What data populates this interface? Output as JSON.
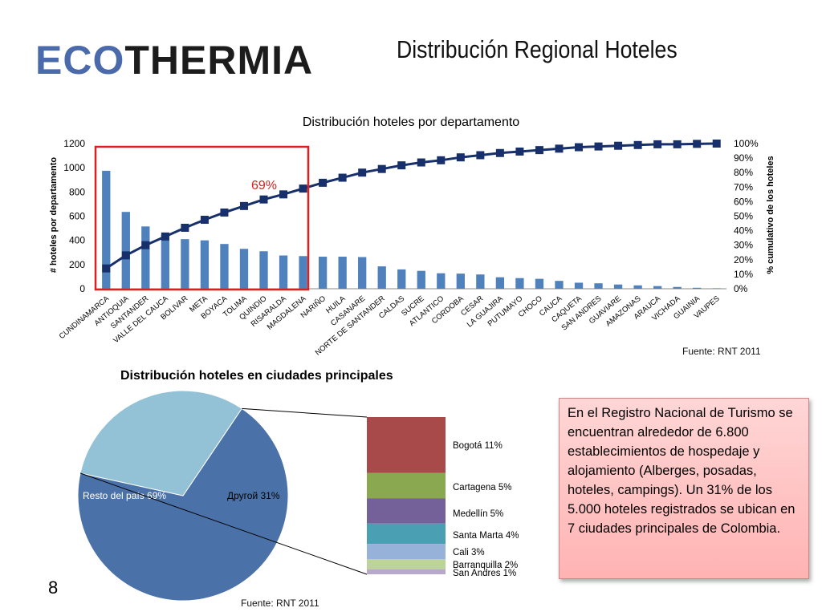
{
  "logo": {
    "part1": "ECO",
    "part2": "THERMIA"
  },
  "slide_title": "Distribución Regional Hoteles",
  "slide_number": "8",
  "note_text": "En el Registro Nacional de Turismo se encuentran alrededor de 6.800 establecimientos de hospedaje y alojamiento (Alberges, posadas, hoteles, campings). Un 31% de los 5.000 hoteles registrados se ubican en 7 ciudades principales de Colombia.",
  "colors": {
    "bar": "#4f81bd",
    "line": "#17306b",
    "highlight": "#e02020",
    "highlight_text": "#e02020"
  },
  "chart_data": [
    {
      "type": "bar",
      "title": "Distribución hoteles por departamento",
      "ylabel": "# hoteles por departamento",
      "y2label": "% cumulativo de los hoteles",
      "ylim": [
        0,
        1200
      ],
      "yticks": [
        "0",
        "200",
        "400",
        "600",
        "800",
        "1000",
        "1200"
      ],
      "y2lim": [
        0,
        100
      ],
      "y2ticks": [
        "0%",
        "10%",
        "20%",
        "30%",
        "40%",
        "50%",
        "60%",
        "70%",
        "80%",
        "90%",
        "100%"
      ],
      "categories": [
        "CUNDINAMARCA",
        "ANTIOQUIA",
        "SANTANDER",
        "VALLE DEL CAUCA",
        "BOLIVAR",
        "META",
        "BOYACA",
        "TOLIMA",
        "QUINDIO",
        "RISARALDA",
        "MAGDALENA",
        "NARIÑO",
        "HUILA",
        "CASANARE",
        "NORTE DE SANTANDER",
        "CALDAS",
        "SUCRE",
        "ATLANTICO",
        "CORDOBA",
        "CESAR",
        "LA GUAJIRA",
        "PUTUMAYO",
        "CHOCO",
        "CAUCA",
        "CAQUETA",
        "SAN ANDRES",
        "GUAVIARE",
        "AMAZONAS",
        "ARAUCA",
        "VICHADA",
        "GUAINIA",
        "VAUPES"
      ],
      "series": [
        {
          "type": "bar",
          "values": [
            975,
            635,
            515,
            445,
            410,
            400,
            370,
            330,
            310,
            275,
            270,
            265,
            265,
            262,
            185,
            160,
            148,
            128,
            125,
            118,
            95,
            88,
            82,
            65,
            50,
            45,
            35,
            28,
            22,
            15,
            8,
            4
          ]
        },
        {
          "type": "line",
          "axis": "y2",
          "values": [
            14,
            23,
            30,
            36,
            42,
            47.5,
            52.5,
            57,
            61.5,
            65,
            69,
            73,
            76.5,
            80,
            82.5,
            85,
            87,
            88.5,
            90.5,
            92,
            93.5,
            94.5,
            95.5,
            96.5,
            97.5,
            98,
            98.5,
            99,
            99.5,
            99.5,
            99.8,
            100
          ]
        }
      ],
      "annotation": "69%",
      "source": "Fuente: RNT 2011"
    },
    {
      "type": "pie",
      "title": "Distribución hoteles en ciudades principales",
      "slices": [
        {
          "label": "Resto del país 69%",
          "value": 69,
          "color": "#4a72a8"
        },
        {
          "label": "Другой 31%",
          "value": 31,
          "color": "#93c2d6"
        }
      ],
      "breakdown": [
        {
          "label": "Bogotá 11%",
          "value": 11,
          "color": "#a94a4a"
        },
        {
          "label": "Cartagena 5%",
          "value": 5,
          "color": "#8aa850"
        },
        {
          "label": "Medellín  5%",
          "value": 5,
          "color": "#75619a"
        },
        {
          "label": "Santa Marta 4%",
          "value": 4,
          "color": "#4aa0b2"
        },
        {
          "label": "Cali 3%",
          "value": 3,
          "color": "#96b2d8"
        },
        {
          "label": "Barranquilla 2%",
          "value": 2,
          "color": "#bcd49a"
        },
        {
          "label": "San Andres 1%",
          "value": 1,
          "color": "#b8a8cc"
        }
      ],
      "source": "Fuente: RNT 2011"
    }
  ]
}
